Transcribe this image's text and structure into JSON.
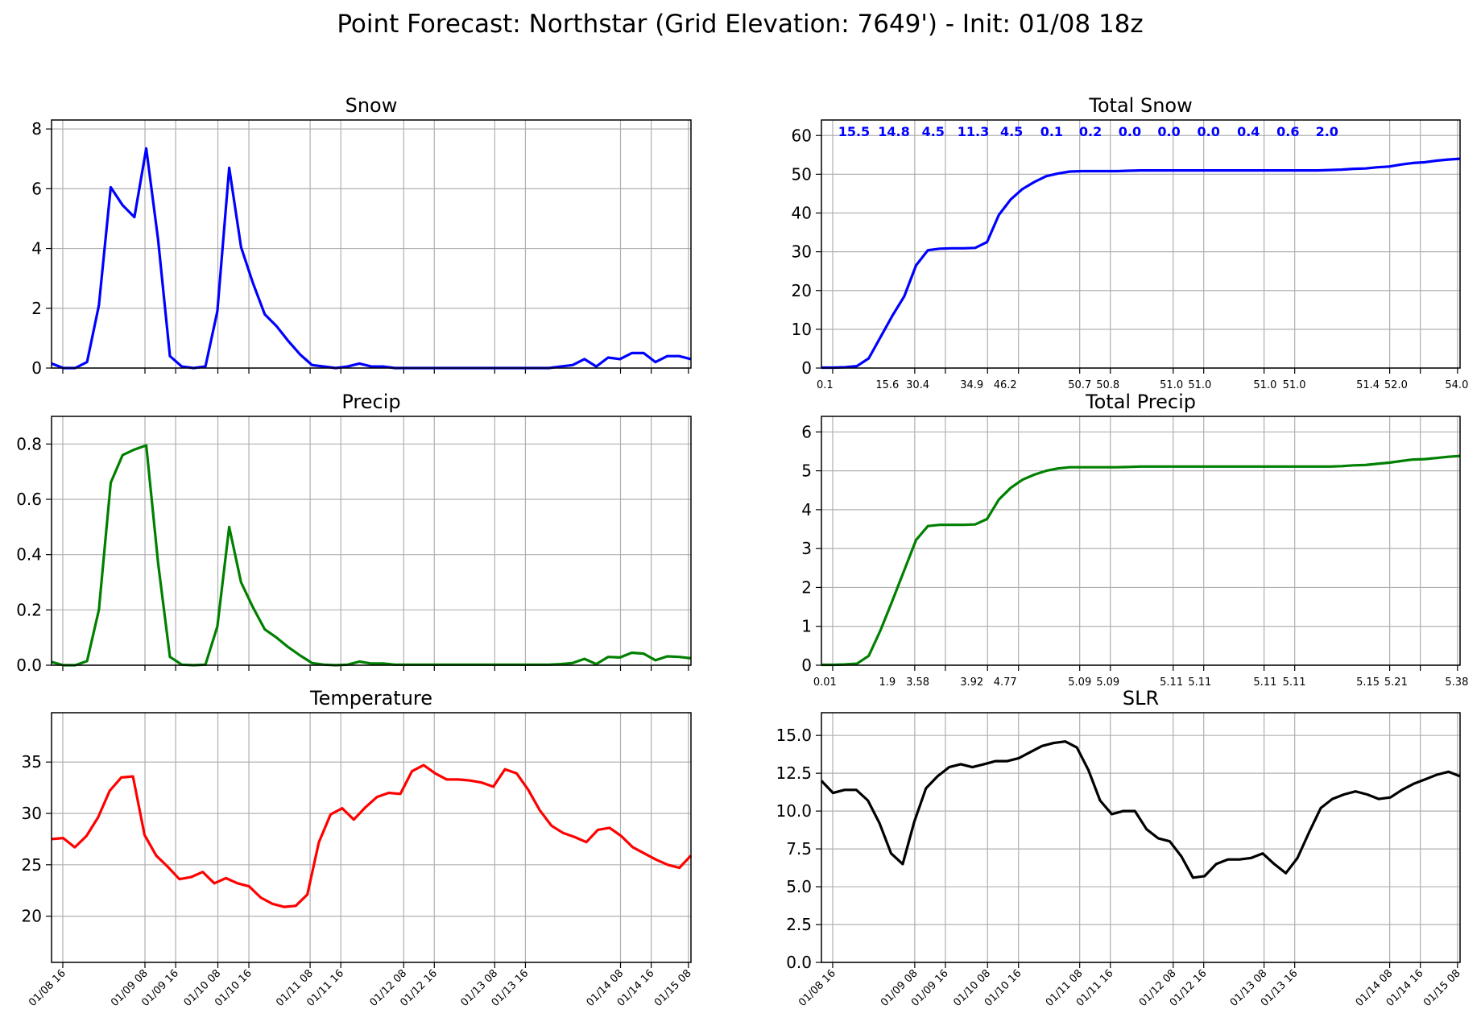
{
  "suptitle": "Point Forecast: Northstar (Grid Elevation: 7649') - Init: 01/08 18z",
  "time_ticks": [
    "01/08 16",
    "01/09 08",
    "01/09 16",
    "01/10 08",
    "01/10 16",
    "01/11 08",
    "01/11 16",
    "01/12 08",
    "01/12 16",
    "01/13 08",
    "01/13 16",
    "01/14 08",
    "01/14 16",
    "01/15 08"
  ],
  "chart_data": [
    {
      "id": "snow",
      "type": "line",
      "title": "Snow",
      "color": "#0000ff",
      "ylim": [
        0,
        8.3
      ],
      "yticks": [
        0,
        2,
        4,
        6,
        8
      ],
      "ytick_decimals": 0,
      "grid": true,
      "values": [
        0.15,
        0.0,
        0.0,
        0.2,
        2.1,
        6.05,
        5.45,
        5.05,
        7.35,
        4.3,
        0.4,
        0.05,
        0.0,
        0.05,
        1.9,
        6.7,
        4.05,
        2.85,
        1.8,
        1.4,
        0.9,
        0.45,
        0.1,
        0.05,
        0.0,
        0.05,
        0.15,
        0.05,
        0.05,
        0.0,
        0.0,
        0.0,
        0.0,
        0.0,
        0.0,
        0.0,
        0.0,
        0.0,
        0.0,
        0.0,
        0.0,
        0.0,
        0.0,
        0.05,
        0.1,
        0.3,
        0.05,
        0.35,
        0.3,
        0.5,
        0.5,
        0.2,
        0.4,
        0.4,
        0.3
      ]
    },
    {
      "id": "total_snow",
      "type": "line",
      "title": "Total Snow",
      "color": "#0000ff",
      "ylim": [
        0,
        64
      ],
      "yticks": [
        0,
        10,
        20,
        30,
        40,
        50,
        60
      ],
      "ytick_decimals": 0,
      "grid": true,
      "values": [
        0.1,
        0.1,
        0.2,
        0.5,
        2.5,
        8.0,
        13.5,
        18.5,
        26.5,
        30.4,
        30.8,
        30.9,
        30.9,
        31.0,
        32.5,
        39.5,
        43.5,
        46.2,
        48.0,
        49.5,
        50.2,
        50.7,
        50.8,
        50.8,
        50.8,
        50.8,
        50.9,
        51.0,
        51.0,
        51.0,
        51.0,
        51.0,
        51.0,
        51.0,
        51.0,
        51.0,
        51.0,
        51.0,
        51.0,
        51.0,
        51.0,
        51.0,
        51.0,
        51.1,
        51.2,
        51.4,
        51.5,
        51.8,
        52.0,
        52.5,
        52.9,
        53.1,
        53.5,
        53.8,
        54.0
      ],
      "period_totals": [
        "15.5",
        "14.8",
        "4.5",
        "11.3",
        "4.5",
        "0.1",
        "0.2",
        "0.0",
        "0.0",
        "0.0",
        "0.4",
        "0.6",
        "2.0"
      ],
      "bottom_labels": [
        "0.1",
        "15.6",
        "30.4",
        "34.9",
        "46.2",
        "50.7",
        "50.8",
        "51.0",
        "51.0",
        "51.0",
        "51.0",
        "51.4",
        "52.0",
        "54.0"
      ]
    },
    {
      "id": "precip",
      "type": "line",
      "title": "Precip",
      "color": "#008000",
      "ylim": [
        0,
        0.9
      ],
      "yticks": [
        0.0,
        0.2,
        0.4,
        0.6,
        0.8
      ],
      "ytick_decimals": 1,
      "grid": true,
      "values": [
        0.012,
        0.0,
        0.0,
        0.015,
        0.2,
        0.66,
        0.76,
        0.78,
        0.795,
        0.37,
        0.03,
        0.002,
        0.0,
        0.002,
        0.14,
        0.5,
        0.3,
        0.21,
        0.13,
        0.1,
        0.065,
        0.035,
        0.008,
        0.002,
        0.0,
        0.002,
        0.013,
        0.006,
        0.006,
        0.002,
        0.002,
        0.002,
        0.002,
        0.002,
        0.002,
        0.002,
        0.002,
        0.002,
        0.002,
        0.002,
        0.002,
        0.002,
        0.002,
        0.004,
        0.008,
        0.023,
        0.004,
        0.03,
        0.028,
        0.045,
        0.042,
        0.018,
        0.032,
        0.03,
        0.025
      ]
    },
    {
      "id": "total_precip",
      "type": "line",
      "title": "Total Precip",
      "color": "#008000",
      "ylim": [
        0,
        6.4
      ],
      "yticks": [
        0,
        1,
        2,
        3,
        4,
        5,
        6
      ],
      "ytick_decimals": 0,
      "grid": true,
      "values": [
        0.01,
        0.01,
        0.02,
        0.04,
        0.24,
        0.9,
        1.66,
        2.44,
        3.22,
        3.58,
        3.61,
        3.61,
        3.61,
        3.62,
        3.76,
        4.26,
        4.56,
        4.77,
        4.9,
        5.0,
        5.06,
        5.09,
        5.09,
        5.09,
        5.09,
        5.09,
        5.1,
        5.11,
        5.11,
        5.11,
        5.11,
        5.11,
        5.11,
        5.11,
        5.11,
        5.11,
        5.11,
        5.11,
        5.11,
        5.11,
        5.11,
        5.11,
        5.11,
        5.11,
        5.12,
        5.14,
        5.15,
        5.18,
        5.21,
        5.25,
        5.29,
        5.3,
        5.33,
        5.36,
        5.38
      ],
      "bottom_labels": [
        "0.01",
        "1.9",
        "3.58",
        "3.92",
        "4.77",
        "5.09",
        "5.09",
        "5.11",
        "5.11",
        "5.11",
        "5.11",
        "5.15",
        "5.21",
        "5.38"
      ]
    },
    {
      "id": "temperature",
      "type": "line",
      "title": "Temperature",
      "color": "#ff0000",
      "ylim": [
        15.5,
        39.8
      ],
      "yticks": [
        20,
        25,
        30,
        35
      ],
      "ytick_decimals": 0,
      "grid": true,
      "values": [
        27.5,
        27.6,
        26.7,
        27.8,
        29.6,
        32.2,
        33.5,
        33.6,
        27.9,
        25.9,
        24.8,
        23.6,
        23.8,
        24.3,
        23.2,
        23.7,
        23.2,
        22.9,
        21.8,
        21.2,
        20.9,
        21.0,
        22.1,
        27.2,
        29.9,
        30.5,
        29.4,
        30.6,
        31.6,
        32.0,
        31.9,
        34.1,
        34.7,
        33.9,
        33.3,
        33.3,
        33.2,
        33.0,
        32.6,
        34.3,
        33.9,
        32.3,
        30.3,
        28.8,
        28.1,
        27.7,
        27.2,
        28.4,
        28.6,
        27.8,
        26.7,
        26.1,
        25.5,
        25.0,
        24.7,
        25.9
      ]
    },
    {
      "id": "slr",
      "type": "line",
      "title": "SLR",
      "color": "#000000",
      "ylim": [
        0,
        16.5
      ],
      "yticks": [
        0.0,
        2.5,
        5.0,
        7.5,
        10.0,
        12.5,
        15.0
      ],
      "ytick_decimals": 1,
      "grid": true,
      "values": [
        12.0,
        11.2,
        11.4,
        11.4,
        10.7,
        9.2,
        7.2,
        6.5,
        9.3,
        11.5,
        12.3,
        12.9,
        13.1,
        12.9,
        13.1,
        13.3,
        13.3,
        13.5,
        13.9,
        14.3,
        14.5,
        14.6,
        14.2,
        12.7,
        10.7,
        9.8,
        10.0,
        10.0,
        8.8,
        8.2,
        8.0,
        7.0,
        5.6,
        5.7,
        6.5,
        6.8,
        6.8,
        6.9,
        7.2,
        6.5,
        5.9,
        6.9,
        8.6,
        10.2,
        10.8,
        11.1,
        11.3,
        11.1,
        10.8,
        10.9,
        11.4,
        11.8,
        12.1,
        12.4,
        12.6,
        12.3
      ]
    }
  ]
}
